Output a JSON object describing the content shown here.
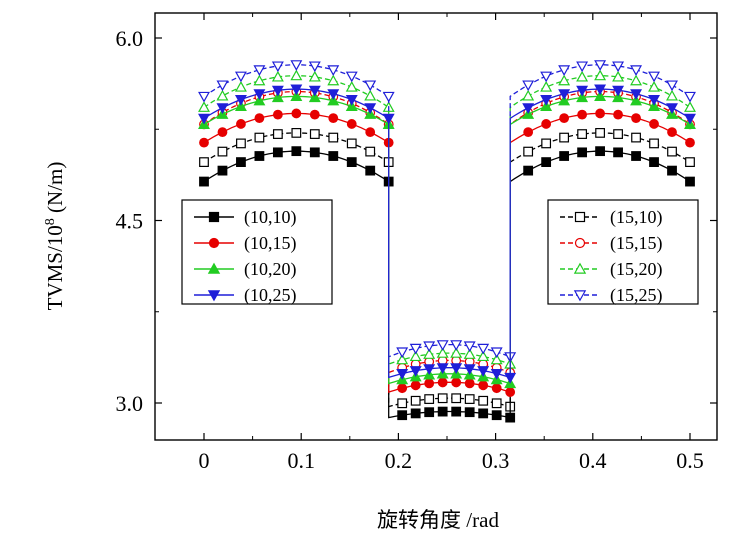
{
  "chart_data": {
    "type": "line",
    "xlabel": "旋转角度 /rad",
    "ylabel_main": "TVMS/10",
    "ylabel_sup": "8",
    "ylabel_unit": " (N/m)",
    "xlim": [
      -0.05,
      0.53
    ],
    "ylim": [
      2.7,
      6.2
    ],
    "xticks": [
      0,
      0.1,
      0.2,
      0.3,
      0.4,
      0.5
    ],
    "xtick_labels": [
      "0",
      "0.1",
      "0.2",
      "0.3",
      "0.4",
      "0.5"
    ],
    "yticks": [
      3.0,
      4.5,
      6.0
    ],
    "ytick_labels": [
      "3.0",
      "4.5",
      "6.0"
    ],
    "grid": false,
    "transition_angles": [
      0.19,
      0.315
    ],
    "legend_left": "middle-left",
    "legend_right": "middle-right",
    "series": [
      {
        "name": "(10,10)",
        "color": "#000000",
        "dash": "solid",
        "marker": "square",
        "filled": true,
        "double_peak": 5.07,
        "double_edge": 4.82,
        "single_peak": 2.93,
        "single_edge": 2.88
      },
      {
        "name": "(10,15)",
        "color": "#e60000",
        "dash": "solid",
        "marker": "circle",
        "filled": true,
        "double_peak": 5.38,
        "double_edge": 5.14,
        "single_peak": 3.17,
        "single_edge": 3.09
      },
      {
        "name": "(10,20)",
        "color": "#22cc22",
        "dash": "solid",
        "marker": "triangle-up",
        "filled": true,
        "double_peak": 5.52,
        "double_edge": 5.29,
        "single_peak": 3.24,
        "single_edge": 3.16
      },
      {
        "name": "(10,25)",
        "color": "#1f1fd8",
        "dash": "solid",
        "marker": "triangle-down",
        "filled": true,
        "double_peak": 5.58,
        "double_edge": 5.34,
        "single_peak": 3.29,
        "single_edge": 3.21
      },
      {
        "name": "(15,10)",
        "color": "#000000",
        "dash": "dashed",
        "marker": "square",
        "filled": false,
        "double_peak": 5.22,
        "double_edge": 4.98,
        "single_peak": 3.04,
        "single_edge": 2.97
      },
      {
        "name": "(15,15)",
        "color": "#e60000",
        "dash": "dashed",
        "marker": "circle",
        "filled": false,
        "double_peak": 5.56,
        "double_edge": 5.29,
        "single_peak": 3.35,
        "single_edge": 3.25
      },
      {
        "name": "(15,20)",
        "color": "#22cc22",
        "dash": "dashed",
        "marker": "triangle-up",
        "filled": false,
        "double_peak": 5.69,
        "double_edge": 5.43,
        "single_peak": 3.41,
        "single_edge": 3.32
      },
      {
        "name": "(15,25)",
        "color": "#1f1fd8",
        "dash": "dashed",
        "marker": "triangle-down",
        "filled": false,
        "double_peak": 5.78,
        "double_edge": 5.52,
        "single_peak": 3.48,
        "single_edge": 3.38
      }
    ]
  }
}
